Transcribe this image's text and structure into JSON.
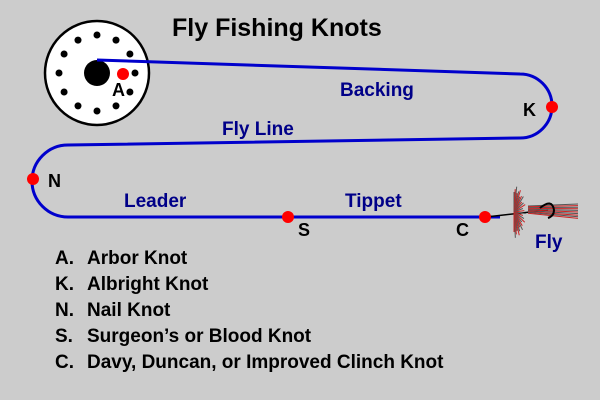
{
  "title": "Fly Fishing Knots",
  "colors": {
    "background": "#cccccc",
    "line": "#0000cc",
    "knot_marker": "#ff0000",
    "label": "#000088",
    "fly_body": "#555555",
    "fly_hackle": "#cc2222"
  },
  "line_labels": {
    "backing": "Backing",
    "fly_line": "Fly Line",
    "leader": "Leader",
    "tippet": "Tippet",
    "fly": "Fly"
  },
  "knot_markers": {
    "a": "A",
    "k": "K",
    "n": "N",
    "s": "S",
    "c": "C"
  },
  "legend": [
    {
      "key": "A.",
      "label": "Arbor Knot"
    },
    {
      "key": "K.",
      "label": "Albright Knot"
    },
    {
      "key": "N.",
      "label": "Nail Knot"
    },
    {
      "key": "S.",
      "label": "Surgeon’s or Blood Knot"
    },
    {
      "key": "C.",
      "label": "Davy, Duncan, or Improved Clinch Knot"
    }
  ],
  "icons": {
    "reel": "fly-reel-icon",
    "fly": "dry-fly-icon"
  }
}
